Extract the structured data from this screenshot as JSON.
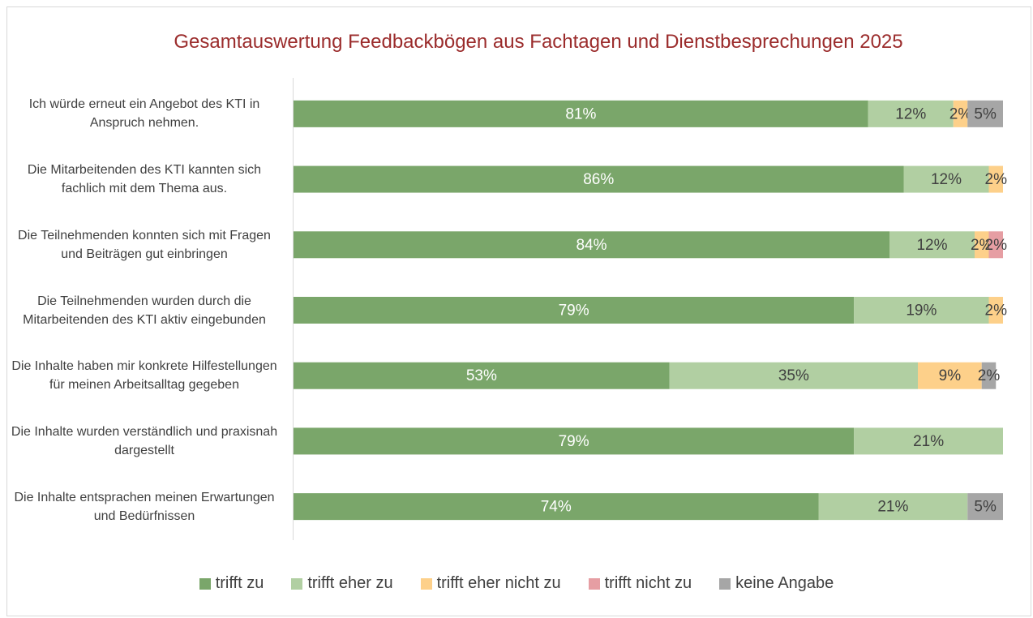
{
  "chart_data": {
    "type": "stacked-bar-horizontal",
    "title": "Gesamtauswertung Feedbackbögen aus Fachtagen und Dienstbesprechungen 2025",
    "categories": [
      "Ich würde erneut ein Angebot des KTI in Anspruch nehmen.",
      "Die Mitarbeitenden des KTI kannten sich fachlich mit dem Thema aus.",
      "Die Teilnehmenden konnten sich mit Fragen und Beiträgen gut einbringen",
      "Die Teilnehmenden wurden durch die Mitarbeitenden des KTI aktiv eingebunden",
      "Die Inhalte haben mir konkrete Hilfestellungen für meinen Arbeitsalltag gegeben",
      "Die Inhalte wurden verständlich und praxisnah dargestellt",
      "Die Inhalte entsprachen meinen Erwartungen und Bedürfnissen"
    ],
    "series": [
      {
        "name": "trifft zu",
        "color": "#7aa66a",
        "values": [
          81,
          86,
          84,
          79,
          53,
          79,
          74
        ],
        "value_labels": [
          "81%",
          "86%",
          "84%",
          "79%",
          "53%",
          "79%",
          "74%"
        ]
      },
      {
        "name": "trifft eher zu",
        "color": "#b1cfa2",
        "values": [
          12,
          12,
          12,
          19,
          35,
          21,
          21
        ],
        "value_labels": [
          "12%",
          "12%",
          "12%",
          "19%",
          "35%",
          "21%",
          "21%"
        ]
      },
      {
        "name": "trifft eher nicht zu",
        "color": "#fdd08a",
        "values": [
          2,
          2,
          2,
          2,
          9,
          null,
          null
        ],
        "value_labels": [
          "2%",
          "2%",
          "2%",
          "2%",
          "9%",
          null,
          null
        ]
      },
      {
        "name": "trifft nicht zu",
        "color": "#e69ea3",
        "values": [
          null,
          null,
          2,
          null,
          null,
          null,
          null
        ],
        "value_labels": [
          null,
          null,
          "2%",
          null,
          null,
          null,
          null
        ]
      },
      {
        "name": "keine Angabe",
        "color": "#a6a6a6",
        "values": [
          5,
          null,
          null,
          null,
          2,
          null,
          5
        ],
        "value_labels": [
          "5%",
          null,
          null,
          null,
          "2%",
          null,
          "5%"
        ]
      }
    ],
    "xlim": [
      0,
      100
    ]
  }
}
